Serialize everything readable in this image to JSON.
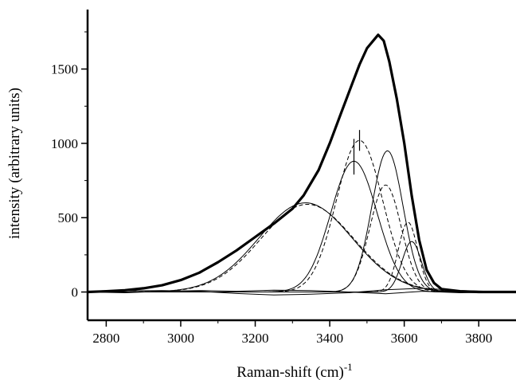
{
  "chart_data": {
    "type": "line",
    "xlabel": "Raman-shift (cm)",
    "xlabel_sup": "-1",
    "ylabel": "intensity (arbitrary units)",
    "xlim": [
      2750,
      3900
    ],
    "ylim": [
      -190,
      1900
    ],
    "x_ticks": [
      2800,
      3000,
      3200,
      3400,
      3600,
      3800
    ],
    "x_tick_labels": [
      "2800",
      "3000",
      "3200",
      "3400",
      "3600",
      "3800"
    ],
    "y_ticks": [
      0,
      500,
      1000,
      1500
    ],
    "y_tick_labels": [
      "0",
      "500",
      "1000",
      "1500"
    ],
    "grid": false,
    "series": [
      {
        "style": "thick-solid",
        "points": [
          [
            2750,
            0
          ],
          [
            2800,
            5
          ],
          [
            2850,
            12
          ],
          [
            2900,
            25
          ],
          [
            2950,
            45
          ],
          [
            3000,
            80
          ],
          [
            3050,
            130
          ],
          [
            3100,
            200
          ],
          [
            3150,
            280
          ],
          [
            3200,
            370
          ],
          [
            3250,
            460
          ],
          [
            3300,
            560
          ],
          [
            3330,
            650
          ],
          [
            3370,
            820
          ],
          [
            3400,
            1000
          ],
          [
            3430,
            1200
          ],
          [
            3460,
            1400
          ],
          [
            3480,
            1530
          ],
          [
            3500,
            1640
          ],
          [
            3520,
            1700
          ],
          [
            3530,
            1730
          ],
          [
            3545,
            1690
          ],
          [
            3560,
            1550
          ],
          [
            3580,
            1300
          ],
          [
            3600,
            1000
          ],
          [
            3620,
            650
          ],
          [
            3640,
            350
          ],
          [
            3660,
            150
          ],
          [
            3680,
            60
          ],
          [
            3700,
            20
          ],
          [
            3750,
            5
          ],
          [
            3800,
            0
          ],
          [
            3900,
            0
          ]
        ]
      },
      {
        "style": "thin-solid",
        "gaussian": {
          "amp": 600,
          "center": 3335,
          "sigma": 125
        }
      },
      {
        "style": "dashed",
        "gaussian": {
          "amp": 590,
          "center": 3340,
          "sigma": 125
        }
      },
      {
        "style": "thin-solid",
        "gaussian": {
          "amp": 880,
          "center": 3465,
          "sigma": 62
        }
      },
      {
        "style": "dashed",
        "gaussian": {
          "amp": 1020,
          "center": 3480,
          "sigma": 62
        }
      },
      {
        "style": "thin-solid",
        "gaussian": {
          "amp": 950,
          "center": 3555,
          "sigma": 42
        }
      },
      {
        "style": "dashed",
        "gaussian": {
          "amp": 720,
          "center": 3550,
          "sigma": 42
        }
      },
      {
        "style": "thin-solid",
        "gaussian": {
          "amp": 340,
          "center": 3620,
          "sigma": 26
        }
      },
      {
        "style": "dashed",
        "gaussian": {
          "amp": 470,
          "center": 3610,
          "sigma": 26
        }
      },
      {
        "style": "thin-solid",
        "points": [
          [
            2750,
            0
          ],
          [
            2850,
            8
          ],
          [
            2950,
            10
          ],
          [
            3050,
            5
          ],
          [
            3150,
            -10
          ],
          [
            3250,
            -20
          ],
          [
            3350,
            -15
          ],
          [
            3450,
            -5
          ],
          [
            3550,
            15
          ],
          [
            3650,
            25
          ],
          [
            3750,
            10
          ],
          [
            3900,
            0
          ]
        ]
      },
      {
        "style": "thin-solid",
        "points": [
          [
            2750,
            0
          ],
          [
            2850,
            -5
          ],
          [
            2950,
            5
          ],
          [
            3050,
            10
          ],
          [
            3150,
            5
          ],
          [
            3250,
            12
          ],
          [
            3350,
            10
          ],
          [
            3450,
            0
          ],
          [
            3550,
            -12
          ],
          [
            3650,
            5
          ],
          [
            3750,
            -5
          ],
          [
            3900,
            0
          ]
        ]
      }
    ],
    "peak_markers": [
      {
        "x": 3465,
        "y_low": 790,
        "y_high": 1030
      },
      {
        "x": 3480,
        "y_low": 950,
        "y_high": 1090
      }
    ]
  }
}
